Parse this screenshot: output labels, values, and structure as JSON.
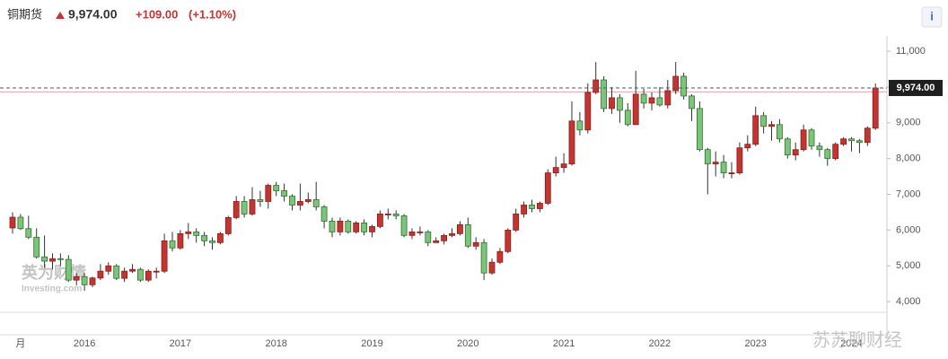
{
  "chart_data": {
    "type": "candlestick",
    "title": "铜期货",
    "price_label": "9,974.00",
    "change": "+109.00",
    "change_pct": "(+1.10%)",
    "watermarks": [
      "英为财情",
      "Investing.com",
      "苏苏聊财经"
    ],
    "up_color": "#c23531",
    "down_color": "#7cc47a",
    "categories": [
      null,
      "月",
      null,
      null,
      null,
      null,
      null,
      null,
      null,
      "2016",
      null,
      null,
      null,
      null,
      null,
      null,
      null,
      null,
      null,
      null,
      null,
      "2017",
      null,
      null,
      null,
      null,
      null,
      null,
      null,
      null,
      null,
      null,
      null,
      "2018",
      null,
      null,
      null,
      null,
      null,
      null,
      null,
      null,
      null,
      null,
      null,
      "2019",
      null,
      null,
      null,
      null,
      null,
      null,
      null,
      null,
      null,
      null,
      null,
      "2020",
      null,
      null,
      null,
      null,
      null,
      null,
      null,
      null,
      null,
      null,
      null,
      "2021",
      null,
      null,
      null,
      null,
      null,
      null,
      null,
      null,
      null,
      null,
      null,
      "2022",
      null,
      null,
      null,
      null,
      null,
      null,
      null,
      null,
      null,
      null,
      null,
      "2023",
      null,
      null,
      null,
      null,
      null,
      null,
      null,
      null,
      null,
      null,
      null,
      "2024",
      null,
      null,
      null
    ],
    "open": [
      6060,
      6360,
      6040,
      5800,
      5250,
      5130,
      5200,
      5180,
      4600,
      4700,
      4470,
      4660,
      4850,
      5000,
      4650,
      4850,
      4900,
      4600,
      4850,
      4850,
      5700,
      5500,
      5900,
      5950,
      5850,
      5700,
      5650,
      5900,
      6350,
      6800,
      6450,
      6850,
      6800,
      7250,
      7100,
      6950,
      6700,
      6800,
      6850,
      6650,
      6250,
      5950,
      6250,
      5950,
      6200,
      5950,
      6100,
      6450,
      6450,
      6400,
      5850,
      5950,
      5950,
      5650,
      5700,
      5850,
      5900,
      6150,
      5550,
      5650,
      4800,
      5100,
      5400,
      6000,
      6450,
      6700,
      6600,
      6750,
      7600,
      7750,
      7850,
      9050,
      8800,
      9850,
      10200,
      9400,
      9700,
      9350,
      8950,
      9800,
      9550,
      9700,
      9500,
      9900,
      10300,
      9750,
      9400,
      8250,
      7850,
      7900,
      7600,
      7600,
      8300,
      8400,
      9200,
      8900,
      8950,
      8550,
      8100,
      8250,
      8800,
      8350,
      8250,
      8000,
      8400,
      8550,
      8500,
      8450,
      8850
    ],
    "high": [
      6500,
      6450,
      6400,
      6050,
      5850,
      5350,
      5350,
      5300,
      4800,
      4800,
      4700,
      5050,
      5100,
      5050,
      4950,
      5050,
      4950,
      4900,
      4950,
      5900,
      5950,
      6000,
      6200,
      6050,
      5950,
      5800,
      5950,
      6400,
      6950,
      6950,
      7200,
      7100,
      7300,
      7350,
      7300,
      7000,
      7300,
      7050,
      7350,
      6700,
      6350,
      6350,
      6300,
      6250,
      6300,
      6150,
      6550,
      6600,
      6550,
      6450,
      6050,
      6100,
      6000,
      5800,
      5900,
      6050,
      6250,
      6350,
      5800,
      5750,
      5200,
      5500,
      6050,
      6600,
      6800,
      6850,
      6800,
      7700,
      8050,
      8150,
      9600,
      9300,
      10100,
      10700,
      10300,
      10000,
      9800,
      9550,
      10450,
      9950,
      9850,
      10000,
      10200,
      10700,
      10400,
      9800,
      9600,
      8300,
      8200,
      8100,
      7900,
      8450,
      8650,
      9450,
      9300,
      9050,
      9100,
      8600,
      8450,
      8950,
      8850,
      8450,
      8300,
      8450,
      8600,
      8600,
      8550,
      8900,
      10100
    ],
    "low": [
      5900,
      6000,
      5750,
      5200,
      4950,
      4900,
      5000,
      4550,
      4450,
      4300,
      4400,
      4600,
      4750,
      4600,
      4550,
      4800,
      4550,
      4550,
      4650,
      4800,
      5400,
      5450,
      5750,
      5650,
      5550,
      5450,
      5600,
      5850,
      6300,
      6350,
      6400,
      6650,
      6600,
      6950,
      6800,
      6550,
      6550,
      6750,
      6550,
      6050,
      5800,
      5850,
      5900,
      5900,
      5850,
      5800,
      6050,
      6300,
      6300,
      5800,
      5750,
      5850,
      5550,
      5650,
      5600,
      5800,
      5850,
      5500,
      5450,
      4600,
      4750,
      5050,
      5350,
      5950,
      6350,
      6500,
      6500,
      6700,
      7500,
      7600,
      7800,
      8650,
      8700,
      9800,
      9300,
      9250,
      9000,
      8900,
      8950,
      9400,
      9350,
      9450,
      9400,
      9800,
      9650,
      9050,
      8200,
      7000,
      7500,
      7450,
      7450,
      7550,
      8200,
      8350,
      8700,
      8500,
      8450,
      8000,
      7950,
      8200,
      8250,
      8050,
      7800,
      7950,
      8350,
      8200,
      8150,
      8350,
      8800
    ],
    "close": [
      6360,
      6040,
      5800,
      5250,
      5130,
      5200,
      5180,
      4600,
      4700,
      4470,
      4660,
      4850,
      5000,
      4650,
      4850,
      4900,
      4600,
      4850,
      4850,
      5700,
      5500,
      5900,
      5950,
      5850,
      5700,
      5650,
      5900,
      6350,
      6800,
      6450,
      6850,
      6800,
      7250,
      7100,
      6950,
      6700,
      6800,
      6850,
      6650,
      6250,
      5950,
      6250,
      5950,
      6200,
      5950,
      6100,
      6450,
      6450,
      6400,
      5850,
      5950,
      5950,
      5650,
      5700,
      5850,
      5900,
      6150,
      5550,
      5650,
      4800,
      5100,
      5400,
      6000,
      6450,
      6700,
      6600,
      6750,
      7600,
      7750,
      7850,
      9050,
      8800,
      9850,
      10200,
      9400,
      9700,
      9350,
      8950,
      9800,
      9550,
      9700,
      9500,
      9900,
      10300,
      9750,
      9400,
      8250,
      7850,
      7900,
      7600,
      7600,
      8300,
      8400,
      9200,
      8900,
      8950,
      8550,
      8100,
      8250,
      8800,
      8350,
      8250,
      8000,
      8400,
      8550,
      8500,
      8450,
      8850,
      9974
    ],
    "prev_close": 9865,
    "ylim": [
      3700,
      11380
    ],
    "yticks": [
      {
        "value": 4000,
        "label": "4,000"
      },
      {
        "value": 5000,
        "label": "5,000"
      },
      {
        "value": 6000,
        "label": "6,000"
      },
      {
        "value": 7000,
        "label": "7,000"
      },
      {
        "value": 8000,
        "label": "8,000"
      },
      {
        "value": 9000,
        "label": "9,000"
      },
      {
        "value": 10000,
        "label": "10,000"
      },
      {
        "value": 11000,
        "label": "11,000"
      }
    ]
  }
}
